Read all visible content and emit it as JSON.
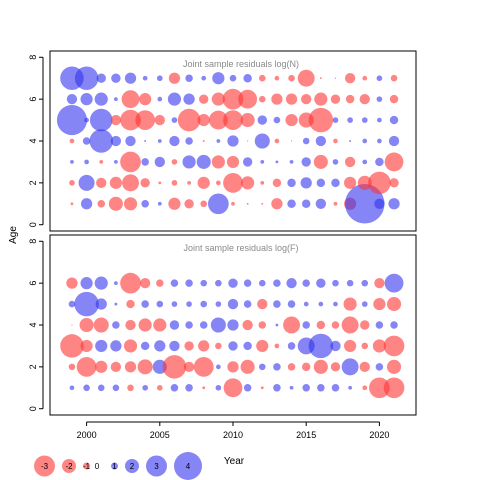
{
  "figure": {
    "ylabel": "Age",
    "xlabel": "Year",
    "colors": {
      "positive": "#3333ee",
      "negative": "#ff3333",
      "frame": "#000000",
      "title_text": "#8a8a8a"
    }
  },
  "legend": {
    "values": [
      -3,
      -2,
      -1,
      0,
      1,
      2,
      3,
      4
    ],
    "labels": [
      "-3",
      "-2",
      "-1",
      "0",
      "1",
      "2",
      "3",
      "4"
    ]
  },
  "chart_data": [
    {
      "type": "scatter",
      "title": "Joint sample residuals log(N)",
      "xlabel": "Year",
      "ylabel": "Age",
      "xlim": [
        1997.5,
        2022.5
      ],
      "ylim": [
        -0.3,
        8.3
      ],
      "x_ticks": [
        2000,
        2005,
        2010,
        2015,
        2020
      ],
      "y_ticks": [
        0,
        2,
        4,
        6,
        8
      ],
      "grid": false,
      "years": [
        1999,
        2000,
        2001,
        2002,
        2003,
        2004,
        2005,
        2006,
        2007,
        2008,
        2009,
        2010,
        2011,
        2012,
        2013,
        2014,
        2015,
        2016,
        2017,
        2018,
        2019,
        2020,
        2021
      ],
      "ages": [
        1,
        2,
        3,
        4,
        5,
        6,
        7
      ],
      "residuals": {
        "1": [
          -0.3,
          1.2,
          -0.8,
          -1.5,
          -1.4,
          0.8,
          0.4,
          -1.3,
          -1.0,
          -0.7,
          2.2,
          -0.4,
          -0.2,
          -0.2,
          -1.2,
          0.9,
          0.9,
          1.1,
          -0.4,
          -1.3,
          4.2,
          1.1,
          1.2
        ],
        "2": [
          -0.6,
          1.7,
          -1.1,
          -1.3,
          -1.8,
          -1.0,
          -0.3,
          -0.6,
          -0.4,
          -1.3,
          -0.5,
          -2.1,
          -1.4,
          -0.4,
          -0.9,
          0.9,
          1.2,
          0.9,
          0.9,
          -1.3,
          -1.5,
          -2.4,
          -1.0
        ],
        "3": [
          0.4,
          0.5,
          -0.4,
          0.4,
          -2.2,
          0.8,
          1.1,
          -0.6,
          1.4,
          1.5,
          -1.4,
          -1.3,
          1.0,
          0.4,
          0.3,
          0.4,
          1.0,
          -1.5,
          0.6,
          -1.1,
          0.5,
          0.9,
          -2.0
        ],
        "4": [
          -0.5,
          0.8,
          2.5,
          1.1,
          1.1,
          0.2,
          0.4,
          1.1,
          0.8,
          -0.2,
          0.4,
          1.2,
          -0.1,
          1.6,
          -0.5,
          -0.1,
          0.7,
          1.1,
          -0.5,
          0.2,
          0.5,
          0.5,
          1.1
        ],
        "5": [
          3.2,
          0.5,
          2.4,
          -1.1,
          -2.2,
          -2.1,
          -1.1,
          0.6,
          -2.4,
          -1.3,
          -2.0,
          -2.1,
          -1.5,
          1.0,
          0.7,
          -1.3,
          -1.6,
          -2.6,
          0.6,
          0.6,
          0.6,
          0.5,
          0.9
        ],
        "6": [
          1.1,
          1.3,
          1.4,
          0.4,
          -1.9,
          -1.3,
          0.5,
          1.4,
          1.2,
          -1.0,
          -1.4,
          -2.2,
          -2.0,
          -0.7,
          -1.2,
          -1.2,
          -1.1,
          -1.4,
          -1.0,
          -0.9,
          -1.1,
          0.6,
          -0.9
        ],
        "7": [
          2.5,
          2.5,
          1.0,
          1.0,
          1.2,
          0.5,
          0.6,
          -1.2,
          0.8,
          0.5,
          1.3,
          0.7,
          0.9,
          -0.7,
          -0.5,
          -0.7,
          -1.8,
          -0.2,
          0.1,
          -1.1,
          -0.5,
          0.6,
          -0.7
        ]
      }
    },
    {
      "type": "scatter",
      "title": "Joint sample residuals log(F)",
      "xlabel": "Year",
      "ylabel": "Age",
      "xlim": [
        1997.5,
        2022.5
      ],
      "ylim": [
        -0.3,
        8.3
      ],
      "x_ticks": [
        2000,
        2005,
        2010,
        2015,
        2020
      ],
      "y_ticks": [
        0,
        2,
        4,
        6,
        8
      ],
      "grid": false,
      "years": [
        1999,
        2000,
        2001,
        2002,
        2003,
        2004,
        2005,
        2006,
        2007,
        2008,
        2009,
        2010,
        2011,
        2012,
        2013,
        2014,
        2015,
        2016,
        2017,
        2018,
        2019,
        2020,
        2021
      ],
      "ages": [
        1,
        2,
        3,
        4,
        5,
        6
      ],
      "residuals": {
        "1": [
          0.5,
          0.7,
          0.7,
          0.7,
          -0.7,
          0.6,
          -0.6,
          0.8,
          0.8,
          -0.3,
          0.6,
          -2.0,
          0.8,
          -0.3,
          0.8,
          0.4,
          0.8,
          0.8,
          0.8,
          0.4,
          -0.5,
          -2.2,
          -2.2
        ],
        "2": [
          -0.7,
          -2.1,
          -1.3,
          -1.1,
          -1.2,
          -1.6,
          1.5,
          -2.5,
          -1.1,
          -2.1,
          0.5,
          -1.2,
          -1.5,
          0.7,
          0.8,
          -0.8,
          -0.9,
          -1.5,
          -1.0,
          1.8,
          -1.1,
          0.8,
          -1.5
        ],
        "3": [
          -2.5,
          -1.3,
          1.3,
          1.2,
          -1.4,
          0.9,
          1.2,
          1.1,
          -1.0,
          -1.2,
          -0.7,
          1.0,
          0.9,
          -1.3,
          -0.5,
          0.8,
          1.8,
          2.6,
          1.1,
          -1.3,
          -0.7,
          -1.4,
          -2.2
        ],
        "4": [
          -0.1,
          -1.5,
          -1.6,
          0.8,
          -1.1,
          -1.4,
          -1.4,
          1.0,
          0.8,
          0.8,
          1.6,
          1.2,
          -1.1,
          -0.8,
          0.3,
          -1.8,
          0.8,
          -0.9,
          -0.8,
          -1.8,
          -1.0,
          0.8,
          0.8
        ],
        "5": [
          0.7,
          2.6,
          1.2,
          0.3,
          -0.9,
          0.8,
          0.7,
          0.6,
          0.6,
          0.7,
          0.6,
          1.1,
          0.8,
          -1.1,
          0.8,
          0.8,
          0.5,
          0.5,
          0.5,
          -1.4,
          0.6,
          -1.3,
          -1.5
        ],
        "6": [
          -1.2,
          1.3,
          1.4,
          0.4,
          -2.2,
          -1.1,
          -0.8,
          0.8,
          0.8,
          0.7,
          0.7,
          1.0,
          0.8,
          0.7,
          0.8,
          1.1,
          0.8,
          1.0,
          0.7,
          0.7,
          0.7,
          -1.1,
          2.0
        ]
      }
    }
  ]
}
